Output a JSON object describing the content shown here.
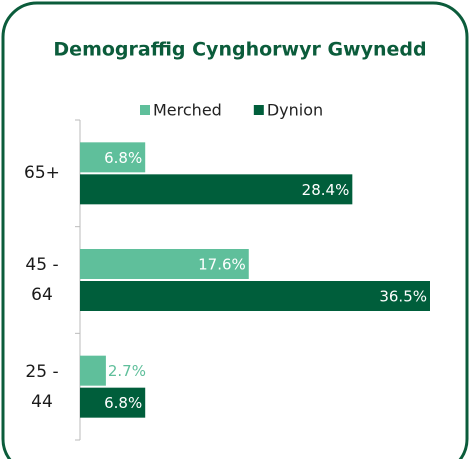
{
  "chart_data": {
    "type": "hbar",
    "title": "Demograffig Cynghorwyr Gwynedd",
    "categories": [
      "65+",
      "45 - 64",
      "25 - 44"
    ],
    "series": [
      {
        "name": "Merched",
        "color": "#5fbf9b",
        "values": [
          6.8,
          17.6,
          2.7
        ],
        "value_labels": [
          "6.8%",
          "17.6%",
          "2.7%"
        ]
      },
      {
        "name": "Dynion",
        "color": "#005e3b",
        "values": [
          28.4,
          36.5,
          6.8
        ],
        "value_labels": [
          "28.4%",
          "36.5%",
          "6.8%"
        ]
      }
    ],
    "legend": "top"
  }
}
